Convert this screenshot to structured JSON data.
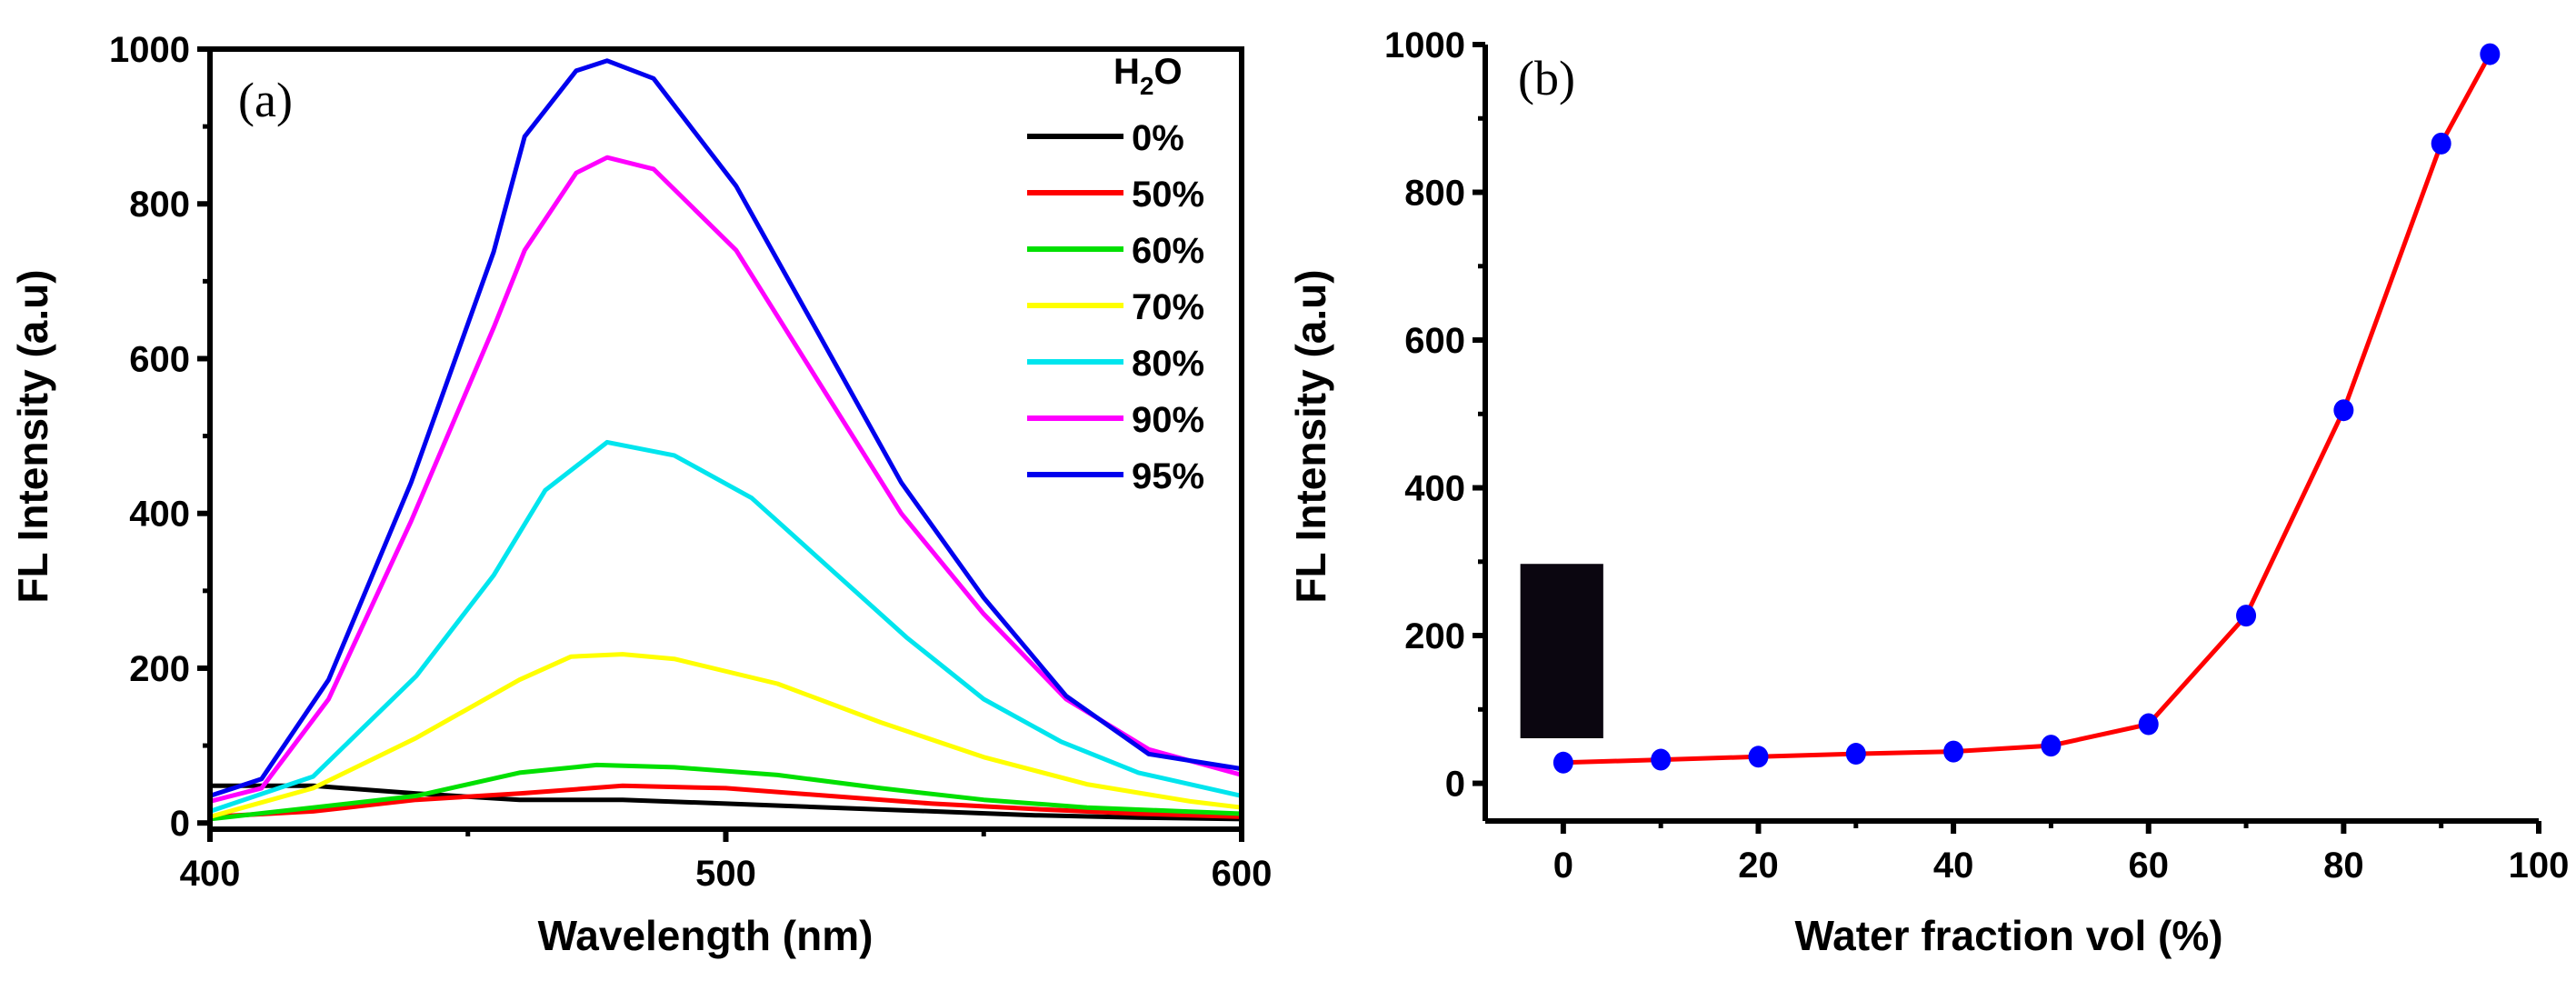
{
  "chart_data": [
    {
      "type": "line",
      "panel_label": "(a)",
      "xlabel": "Wavelength (nm)",
      "ylabel": "FL Intensity (a.u)",
      "xlim": [
        400,
        600
      ],
      "ylim": [
        -8,
        1000
      ],
      "xticks": [
        400,
        500,
        600
      ],
      "yticks": [
        0,
        200,
        400,
        600,
        800,
        1000
      ],
      "legend_title": "H₂O",
      "legend_title_main": "H",
      "legend_title_sub": "2",
      "legend_title_end": "O",
      "legend_placement": "top-right",
      "series": [
        {
          "name": "0%",
          "color": "#000000",
          "x": [
            400,
            420,
            440,
            460,
            480,
            500,
            520,
            540,
            560,
            580,
            600
          ],
          "y": [
            48,
            48,
            38,
            30,
            30,
            25,
            20,
            15,
            10,
            7,
            5
          ]
        },
        {
          "name": "50%",
          "color": "#ff0000",
          "x": [
            400,
            420,
            440,
            460,
            480,
            500,
            520,
            540,
            560,
            580,
            600
          ],
          "y": [
            8,
            15,
            30,
            38,
            48,
            45,
            35,
            25,
            18,
            12,
            8
          ]
        },
        {
          "name": "60%",
          "color": "#00e000",
          "x": [
            400,
            420,
            440,
            460,
            475,
            490,
            510,
            530,
            550,
            570,
            600
          ],
          "y": [
            5,
            20,
            35,
            65,
            75,
            72,
            62,
            45,
            30,
            20,
            12
          ]
        },
        {
          "name": "70%",
          "color": "#ffff00",
          "x": [
            400,
            420,
            440,
            460,
            470,
            480,
            490,
            510,
            530,
            550,
            570,
            590,
            600
          ],
          "y": [
            8,
            45,
            110,
            185,
            215,
            218,
            212,
            180,
            130,
            85,
            50,
            28,
            20
          ]
        },
        {
          "name": "80%",
          "color": "#00e5ee",
          "x": [
            400,
            420,
            440,
            455,
            465,
            477,
            490,
            505,
            520,
            535,
            550,
            565,
            580,
            600
          ],
          "y": [
            15,
            60,
            190,
            320,
            430,
            492,
            475,
            420,
            330,
            240,
            160,
            105,
            65,
            35
          ]
        },
        {
          "name": "90%",
          "color": "#ff00ff",
          "x": [
            400,
            410,
            423,
            439,
            455,
            461,
            471,
            477,
            486,
            502,
            518,
            534,
            550,
            566,
            582,
            600
          ],
          "y": [
            28,
            45,
            160,
            390,
            640,
            740,
            840,
            860,
            845,
            740,
            570,
            400,
            270,
            160,
            95,
            62
          ]
        },
        {
          "name": "95%",
          "color": "#0000ee",
          "x": [
            400,
            410,
            423,
            439,
            455,
            461,
            471,
            477,
            486,
            502,
            518,
            534,
            550,
            566,
            582,
            600
          ],
          "y": [
            35,
            57,
            185,
            440,
            738,
            887,
            972,
            985,
            962,
            823,
            632,
            440,
            291,
            164,
            89,
            70
          ]
        }
      ]
    },
    {
      "type": "line",
      "panel_label": "(b)",
      "xlabel": "Water fraction vol (%)",
      "ylabel": "FL Intensity (a.u)",
      "xlim": [
        -8,
        100
      ],
      "ylim": [
        -51,
        1000
      ],
      "xticks": [
        0,
        20,
        40,
        60,
        80,
        100
      ],
      "yticks": [
        0,
        200,
        400,
        600,
        800,
        1000
      ],
      "line_color": "#ff0000",
      "marker_color": "#0000ff",
      "x": [
        0,
        10,
        20,
        30,
        40,
        50,
        60,
        70,
        80,
        90,
        95
      ],
      "y": [
        28,
        32,
        36,
        40,
        43,
        51,
        80,
        227,
        505,
        866,
        987
      ]
    }
  ]
}
